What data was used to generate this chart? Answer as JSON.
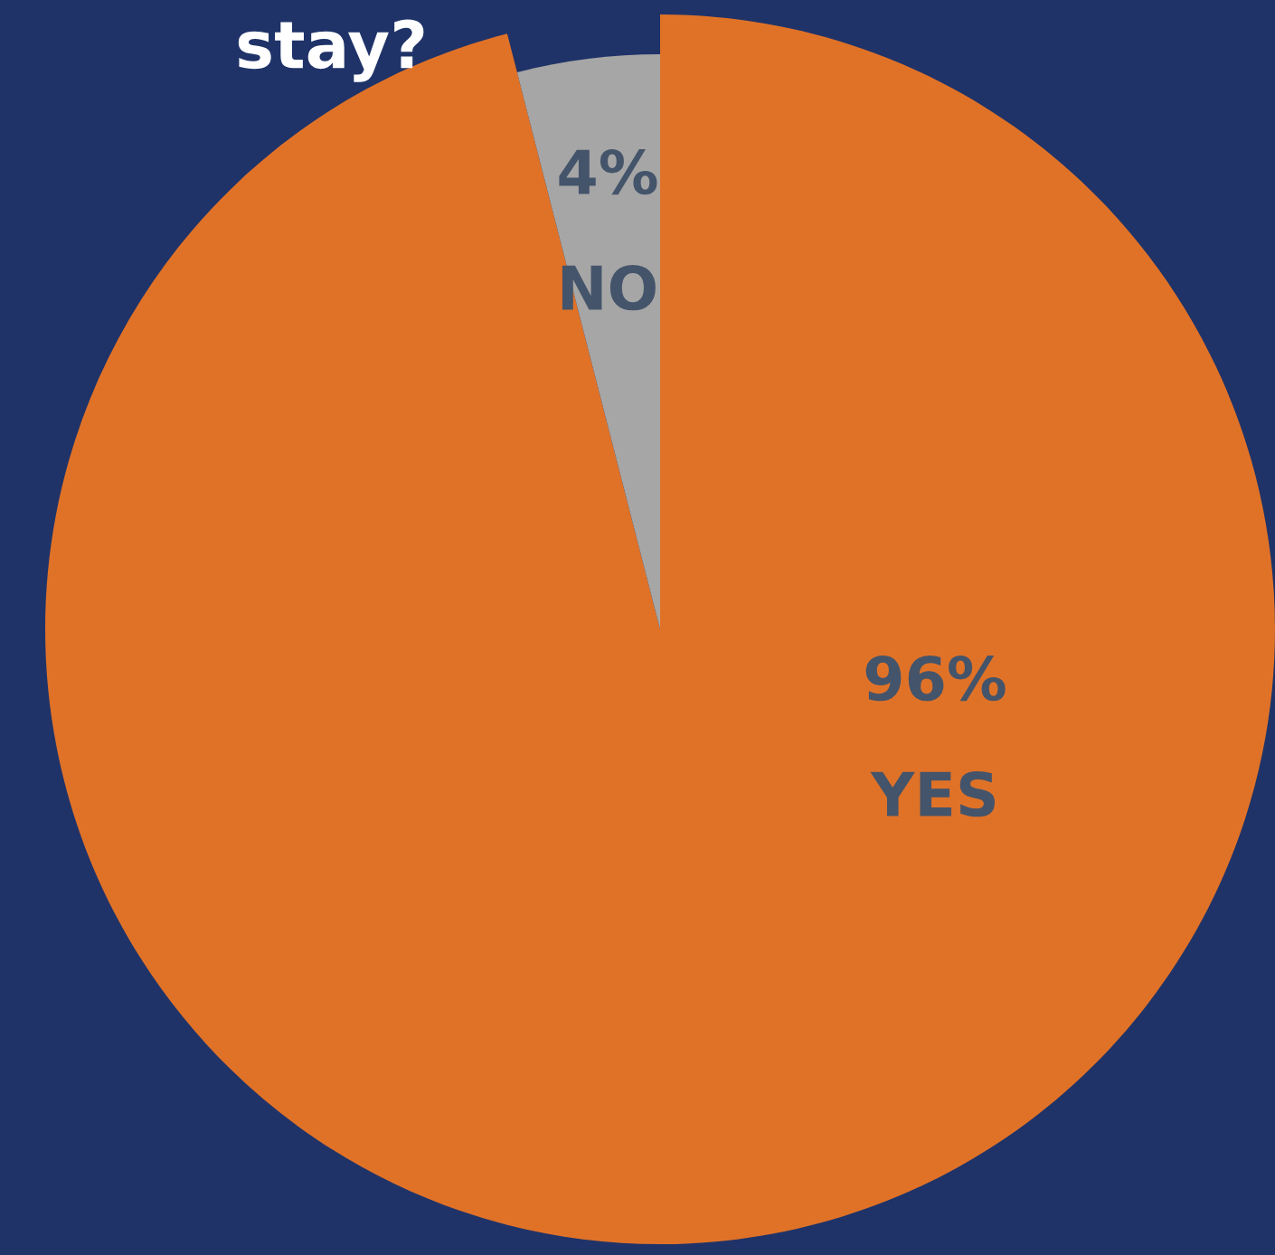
{
  "chart_data": {
    "type": "pie",
    "title": "stay?",
    "categories": [
      "YES",
      "NO"
    ],
    "values": [
      96,
      4
    ],
    "colors": [
      "#e07228",
      "#a6a6a6"
    ],
    "value_labels": [
      "96%",
      "4%"
    ]
  }
}
